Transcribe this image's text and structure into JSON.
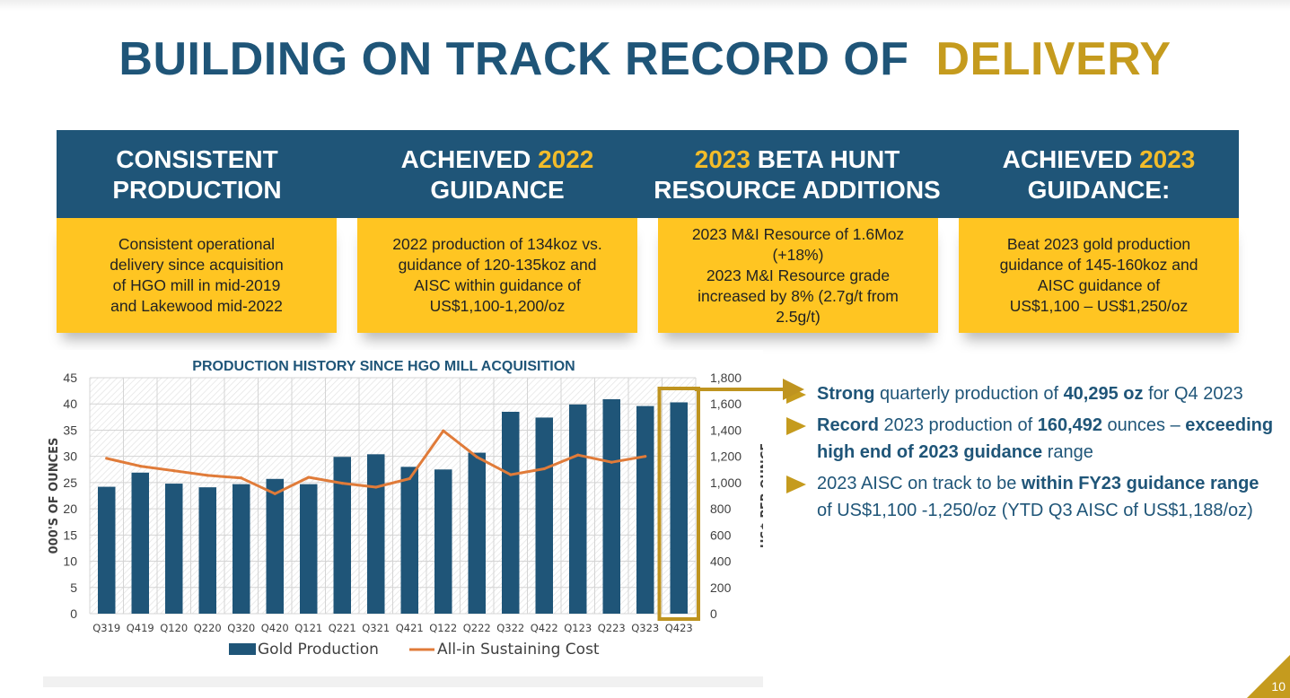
{
  "title": {
    "main": "BUILDING ON TRACK RECORD OF",
    "accent": "DELIVERY"
  },
  "columns": [
    {
      "head_lines": [
        [
          {
            "t": "CONSISTENT",
            "g": false
          }
        ],
        [
          {
            "t": "PRODUCTION",
            "g": false
          }
        ]
      ],
      "body": [
        "Consistent operational",
        "delivery since acquisition",
        "of HGO mill in mid-2019",
        "and Lakewood mid-2022"
      ]
    },
    {
      "head_lines": [
        [
          {
            "t": "ACHEIVED ",
            "g": false
          },
          {
            "t": "2022",
            "g": true
          }
        ],
        [
          {
            "t": "GUIDANCE",
            "g": false
          }
        ]
      ],
      "body": [
        "2022 production of 134koz vs.",
        "guidance of 120-135koz and",
        "AISC within guidance of",
        "US$1,100-1,200/oz"
      ]
    },
    {
      "head_lines": [
        [
          {
            "t": "2023",
            "g": true
          },
          {
            "t": " BETA HUNT",
            "g": false
          }
        ],
        [
          {
            "t": "RESOURCE ADDITIONS",
            "g": false
          }
        ]
      ],
      "body": [
        "2023 M&I Resource of 1.6Moz",
        "(+18%)",
        "2023 M&I Resource grade",
        "increased by 8% (2.7g/t from",
        "2.5g/t)"
      ]
    },
    {
      "head_lines": [
        [
          {
            "t": "ACHIEVED ",
            "g": false
          },
          {
            "t": "2023",
            "g": true
          }
        ],
        [
          {
            "t": "GUIDANCE:",
            "g": false
          }
        ]
      ],
      "body": [
        "Beat 2023 gold production",
        "guidance of 145-160koz and",
        "AISC guidance of",
        "US$1,100 – US$1,250/oz"
      ]
    }
  ],
  "chart_data": {
    "type": "bar",
    "title": "PRODUCTION HISTORY SINCE HGO MILL ACQUISITION",
    "categories": [
      "Q319",
      "Q419",
      "Q120",
      "Q220",
      "Q320",
      "Q420",
      "Q121",
      "Q221",
      "Q321",
      "Q421",
      "Q122",
      "Q222",
      "Q322",
      "Q422",
      "Q123",
      "Q223",
      "Q323",
      "Q423"
    ],
    "series": [
      {
        "name": "Gold Production",
        "type": "bar",
        "axis": "left",
        "color": "#1f5578",
        "values": [
          24.2,
          26.9,
          24.8,
          24.1,
          24.7,
          25.7,
          24.7,
          29.9,
          30.4,
          28.0,
          27.5,
          30.7,
          38.5,
          37.4,
          39.9,
          40.9,
          39.6,
          40.3
        ]
      },
      {
        "name": "All-in Sustaining Cost",
        "type": "line",
        "axis": "right",
        "color": "#e07b39",
        "values": [
          1185,
          1125,
          1090,
          1055,
          1035,
          915,
          1040,
          995,
          965,
          1030,
          1395,
          1195,
          1060,
          1105,
          1210,
          1155,
          1200,
          null
        ]
      }
    ],
    "ylabel": "000'S OF OUNCES",
    "y2label": "US$ PER OUNCE",
    "ylim": [
      0,
      45
    ],
    "y2lim": [
      0,
      1800
    ],
    "yticks": [
      "0",
      "5",
      "10",
      "15",
      "20",
      "25",
      "30",
      "35",
      "40",
      "45"
    ],
    "y2ticks": [
      "0",
      "200",
      "400",
      "600",
      "800",
      "1,000",
      "1,200",
      "1,400",
      "1,600",
      "1,800"
    ],
    "highlight_category": "Q423",
    "highlight_color": "#bf9420",
    "grid": true,
    "legend_position": "bottom"
  },
  "bullets": [
    [
      {
        "t": "Strong",
        "b": true
      },
      {
        "t": " quarterly production of ",
        "b": false
      },
      {
        "t": "40,295 oz",
        "b": true
      },
      {
        "t": " for Q4 2023",
        "b": false
      }
    ],
    [
      {
        "t": "Record",
        "b": true
      },
      {
        "t": " 2023 production of ",
        "b": false
      },
      {
        "t": "160,492",
        "b": true
      },
      {
        "t": " ounces – ",
        "b": false
      },
      {
        "t": "exceeding high end of 2023 guidance",
        "b": true
      },
      {
        "t": " range",
        "b": false
      }
    ],
    [
      {
        "t": "2023 AISC on track to be ",
        "b": false
      },
      {
        "t": "within FY23 guidance range",
        "b": true
      },
      {
        "t": " of US$1,100 -1,250/oz (YTD Q3 AISC of US$1,188/oz)",
        "b": false
      }
    ]
  ],
  "page_number": "10",
  "colors": {
    "navy": "#1f5578",
    "gold": "#c59b1e",
    "yellow": "#ffc522",
    "orange": "#e07b39"
  }
}
